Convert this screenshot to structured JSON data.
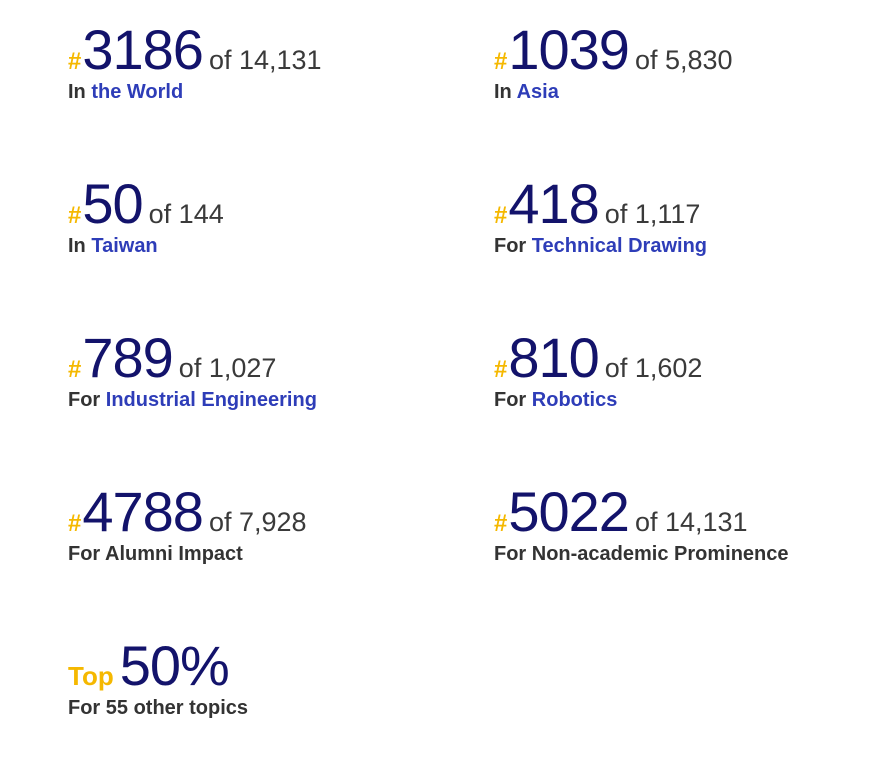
{
  "rankings": [
    {
      "hash": "#",
      "rank": "3186",
      "total": "of 14,131",
      "label_prefix": "In",
      "label_link": "the World",
      "label_plain": ""
    },
    {
      "hash": "#",
      "rank": "1039",
      "total": "of 5,830",
      "label_prefix": "In",
      "label_link": "Asia",
      "label_plain": ""
    },
    {
      "hash": "#",
      "rank": "50",
      "total": "of 144",
      "label_prefix": "In",
      "label_link": "Taiwan",
      "label_plain": ""
    },
    {
      "hash": "#",
      "rank": "418",
      "total": "of 1,117",
      "label_prefix": "For",
      "label_link": "Technical Drawing",
      "label_plain": ""
    },
    {
      "hash": "#",
      "rank": "789",
      "total": "of 1,027",
      "label_prefix": "For",
      "label_link": "Industrial Engineering",
      "label_plain": ""
    },
    {
      "hash": "#",
      "rank": "810",
      "total": "of 1,602",
      "label_prefix": "For",
      "label_link": "Robotics",
      "label_plain": ""
    },
    {
      "hash": "#",
      "rank": "4788",
      "total": "of 7,928",
      "label_prefix": "For Alumni Impact",
      "label_link": "",
      "label_plain": ""
    },
    {
      "hash": "#",
      "rank": "5022",
      "total": "of 14,131",
      "label_prefix": "For Non-academic Prominence",
      "label_link": "",
      "label_plain": ""
    }
  ],
  "top": {
    "prefix": "Top",
    "value": "50%",
    "label": "For 55 other topics"
  },
  "colors": {
    "hash": "#f5b800",
    "rank": "#13136b",
    "link": "#2e3db8",
    "text": "#333333"
  }
}
